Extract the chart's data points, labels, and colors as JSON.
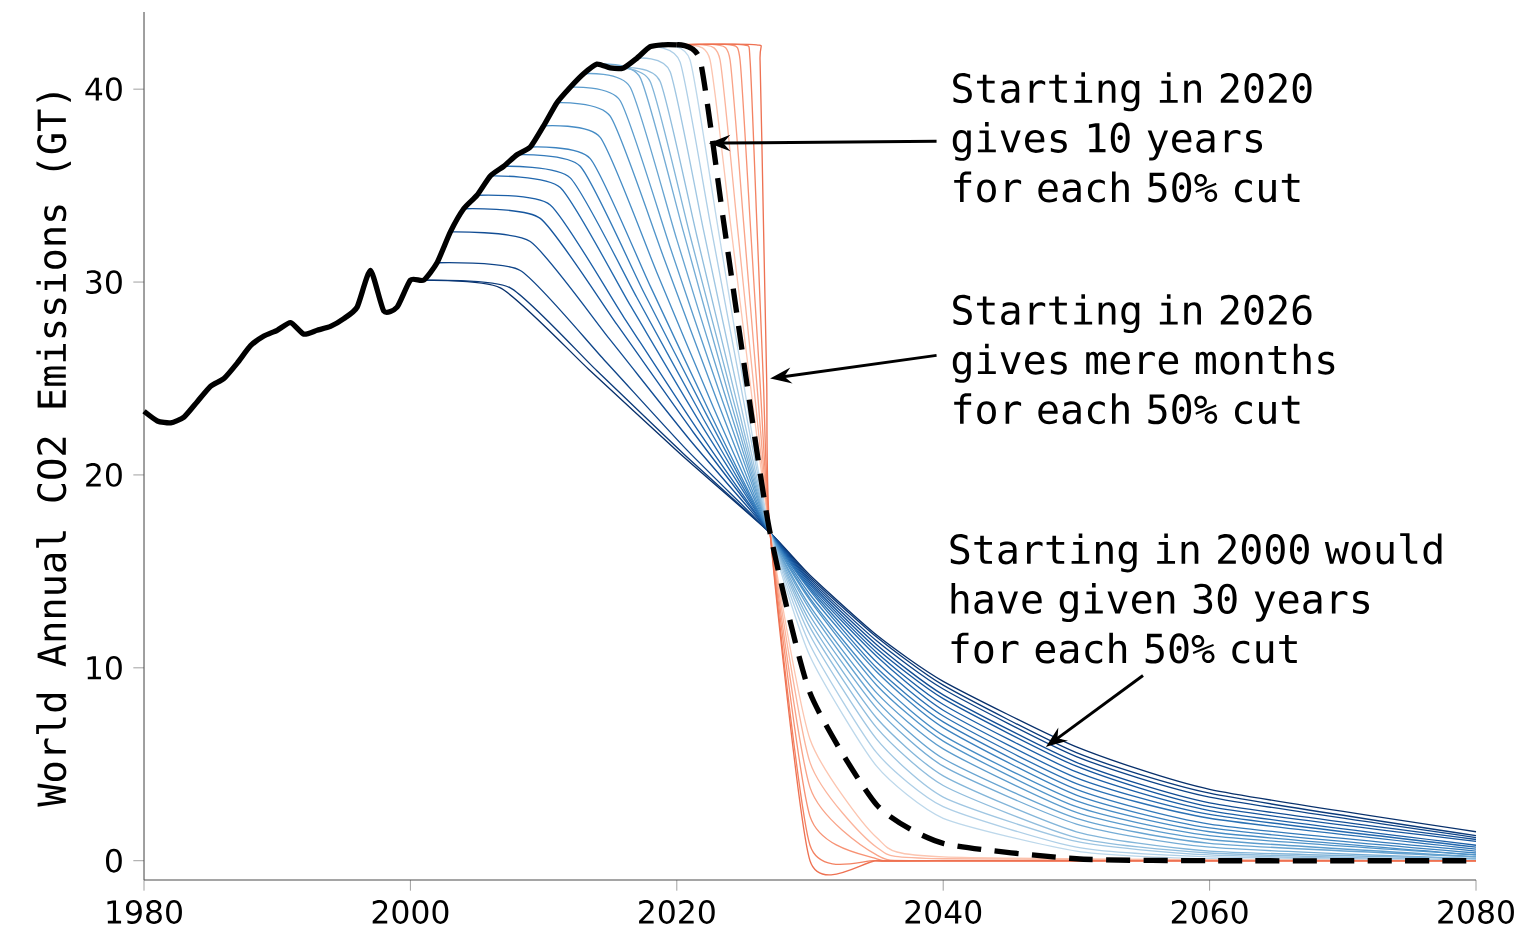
{
  "chart_data": {
    "type": "line",
    "ylabel": "World Annual CO2 Emissions (GT)",
    "xlim": [
      1980,
      2080
    ],
    "ylim": [
      -1,
      44
    ],
    "xticks": [
      1980,
      2000,
      2020,
      2040,
      2060,
      2080
    ],
    "yticks": [
      0,
      10,
      20,
      30,
      40
    ],
    "grid": false,
    "annotations": [
      {
        "text": "Starting in 2020 gives 10 years for each 50% cut",
        "x": 2022.4,
        "y": 37.2
      },
      {
        "text": "Starting in 2026 gives mere months for each 50% cut",
        "x": 2027.0,
        "y": 25.0
      },
      {
        "text": "Starting in 2000 would have given 30 years for each 50% cut",
        "x": 2047.7,
        "y": 5.9
      }
    ],
    "series": [
      {
        "color": "#08306b",
        "x": [
          2000,
          2006.75,
          2013.5,
          2020.25,
          2027,
          2030,
          2035,
          2040,
          2050,
          2060,
          2080
        ],
        "values": [
          30.1,
          29.7,
          25.4,
          21.1,
          17,
          14.8,
          11.7,
          9.3,
          5.9,
          3.7,
          1.5
        ]
      },
      {
        "color": "#0b3a7a",
        "x": [
          2001,
          2007.5,
          2014,
          2020.5,
          2027,
          2030,
          2035,
          2040,
          2050,
          2060,
          2080
        ],
        "values": [
          30.1,
          29.7,
          25.4,
          21.1,
          17,
          14.7,
          11.6,
          9.1,
          5.6,
          3.5,
          1.3
        ]
      },
      {
        "color": "#0e4488",
        "x": [
          2002,
          2008.25,
          2014.5,
          2020.75,
          2027,
          2030,
          2035,
          2040,
          2050,
          2060,
          2080
        ],
        "values": [
          31.0,
          30.6,
          26.0,
          21.3,
          17,
          14.6,
          11.4,
          8.9,
          5.4,
          3.3,
          1.2
        ]
      },
      {
        "color": "#124d94",
        "x": [
          2003,
          2009,
          2015,
          2021,
          2027,
          2030,
          2035,
          2040,
          2050,
          2060,
          2080
        ],
        "values": [
          32.6,
          32.1,
          27.0,
          21.8,
          17,
          14.5,
          11.2,
          8.6,
          5.1,
          3.0,
          1.1
        ]
      },
      {
        "color": "#16569e",
        "x": [
          2004,
          2009.75,
          2015.5,
          2021.25,
          2027,
          2030,
          2035,
          2040,
          2050,
          2060,
          2080
        ],
        "values": [
          33.8,
          33.3,
          27.8,
          22.2,
          17,
          14.4,
          11.0,
          8.4,
          4.9,
          2.8,
          1.0
        ]
      },
      {
        "color": "#1b5fa7",
        "x": [
          2005,
          2010.5,
          2016,
          2021.5,
          2027,
          2030,
          2035,
          2040,
          2050,
          2060,
          2080
        ],
        "values": [
          34.5,
          34.0,
          28.2,
          22.4,
          17,
          14.3,
          10.8,
          8.1,
          4.6,
          2.6,
          0.8
        ]
      },
      {
        "color": "#2268ae",
        "x": [
          2006,
          2011.25,
          2016.5,
          2021.75,
          2027,
          2030,
          2035,
          2040,
          2050,
          2060,
          2080
        ],
        "values": [
          35.5,
          34.9,
          28.8,
          22.7,
          17,
          14.2,
          10.6,
          7.8,
          4.3,
          2.4,
          0.7
        ]
      },
      {
        "color": "#2a71b4",
        "x": [
          2007,
          2012,
          2017,
          2022,
          2027,
          2030,
          2035,
          2040,
          2050,
          2060,
          2080
        ],
        "values": [
          36.0,
          35.4,
          29.2,
          22.9,
          17,
          14.1,
          10.3,
          7.5,
          4.0,
          2.2,
          0.6
        ]
      },
      {
        "color": "#337aba",
        "x": [
          2008,
          2012.75,
          2017.5,
          2022.25,
          2027,
          2030,
          2035,
          2040,
          2050,
          2060,
          2080
        ],
        "values": [
          36.6,
          36.0,
          29.5,
          23.1,
          17,
          14.0,
          10.0,
          7.2,
          3.7,
          1.9,
          0.5
        ]
      },
      {
        "color": "#3c83c0",
        "x": [
          2009,
          2013.5,
          2018,
          2022.5,
          2027,
          2030,
          2035,
          2040,
          2050,
          2060,
          2080
        ],
        "values": [
          37.0,
          36.4,
          29.8,
          23.2,
          17,
          13.8,
          9.8,
          6.9,
          3.4,
          1.7,
          0.4
        ]
      },
      {
        "color": "#468cc5",
        "x": [
          2010,
          2014.25,
          2018.5,
          2022.75,
          2027,
          2030,
          2035,
          2040,
          2050,
          2060,
          2080
        ],
        "values": [
          38.1,
          37.5,
          30.5,
          23.5,
          17,
          13.6,
          9.4,
          6.5,
          3.1,
          1.5,
          0.3
        ]
      },
      {
        "color": "#5094c9",
        "x": [
          2011,
          2015,
          2019,
          2023,
          2027,
          2030,
          2035,
          2040,
          2050,
          2060,
          2080
        ],
        "values": [
          39.3,
          38.6,
          31.3,
          23.9,
          17,
          13.5,
          9.1,
          6.2,
          2.8,
          1.3,
          0.3
        ]
      },
      {
        "color": "#5b9ccd",
        "x": [
          2012,
          2015.75,
          2019.5,
          2023.25,
          2027,
          2030,
          2035,
          2040,
          2050,
          2060,
          2080
        ],
        "values": [
          40.1,
          39.4,
          31.8,
          24.2,
          17,
          13.2,
          8.7,
          5.8,
          2.5,
          1.1,
          0.2
        ]
      },
      {
        "color": "#67a4d1",
        "x": [
          2013,
          2016.5,
          2020,
          2023.5,
          2027,
          2030,
          2035,
          2040,
          2050,
          2060,
          2080
        ],
        "values": [
          40.8,
          40.1,
          32.2,
          24.4,
          17,
          13.0,
          8.3,
          5.3,
          2.2,
          0.9,
          0.2
        ]
      },
      {
        "color": "#74acd5",
        "x": [
          2014,
          2017.25,
          2020.5,
          2023.75,
          2027,
          2030,
          2035,
          2040,
          2050,
          2060,
          2080
        ],
        "values": [
          41.3,
          40.6,
          32.6,
          24.5,
          17,
          12.7,
          7.9,
          4.9,
          1.9,
          0.7,
          0.1
        ]
      },
      {
        "color": "#82b5d9",
        "x": [
          2015,
          2018,
          2021,
          2024,
          2027,
          2030,
          2035,
          2040,
          2050,
          2060,
          2080
        ],
        "values": [
          41.1,
          40.4,
          32.4,
          24.5,
          17,
          12.4,
          7.4,
          4.4,
          1.5,
          0.5,
          0.1
        ]
      },
      {
        "color": "#90bddd",
        "x": [
          2016,
          2018.75,
          2021.5,
          2024.25,
          2027,
          2030,
          2035,
          2040,
          2050,
          2060,
          2080
        ],
        "values": [
          41.1,
          40.4,
          32.4,
          24.5,
          17,
          12.1,
          6.9,
          3.9,
          1.2,
          0.4,
          0.0
        ]
      },
      {
        "color": "#9fc6e2",
        "x": [
          2017,
          2019.5,
          2022,
          2024.5,
          2027,
          2030,
          2035,
          2040,
          2050,
          2060,
          2080
        ],
        "values": [
          41.6,
          40.9,
          32.7,
          24.6,
          17,
          11.7,
          6.3,
          3.3,
          1.0,
          0.3,
          0.0
        ]
      },
      {
        "color": "#aecfe7",
        "x": [
          2018,
          2020.25,
          2022.5,
          2024.75,
          2027,
          2030,
          2035,
          2040,
          2050,
          2060,
          2080
        ],
        "values": [
          42.2,
          41.4,
          33.1,
          24.8,
          17,
          11.2,
          5.6,
          2.8,
          0.7,
          0.2,
          0.0
        ]
      },
      {
        "color": "#bdd8eb",
        "x": [
          2019,
          2021,
          2023,
          2025,
          2027,
          2030,
          2035,
          2040,
          2050,
          2060,
          2080
        ],
        "values": [
          42.3,
          41.5,
          33.2,
          24.8,
          17,
          10.6,
          4.9,
          2.2,
          0.5,
          0.1,
          0.0
        ]
      },
      {
        "color": "#fcc5b0",
        "x": [
          2020,
          2021,
          2022.5,
          2024,
          2025.5,
          2027,
          2030,
          2035,
          2040,
          2080
        ],
        "values": [
          42.3,
          42.3,
          41.5,
          33.2,
          24.8,
          17,
          6.3,
          1.2,
          0.2,
          0.0
        ]
      },
      {
        "color": "#fbb49c",
        "x": [
          2020,
          2022,
          2023.25,
          2024.5,
          2025.75,
          2027,
          2030,
          2035,
          2040,
          2080
        ],
        "values": [
          42.3,
          42.3,
          41.5,
          33.2,
          24.8,
          17,
          5.1,
          0.7,
          0.1,
          0.0
        ]
      },
      {
        "color": "#f9a388",
        "x": [
          2020,
          2023,
          2024,
          2025,
          2026,
          2027,
          2030,
          2035,
          2040,
          2080
        ],
        "values": [
          42.3,
          42.3,
          41.5,
          33.2,
          24.8,
          17,
          3.8,
          0.3,
          0.0,
          0.0
        ]
      },
      {
        "color": "#f79274",
        "x": [
          2020,
          2024,
          2024.75,
          2025.5,
          2026.25,
          2027,
          2030,
          2035,
          2040,
          2080
        ],
        "values": [
          42.3,
          42.3,
          41.5,
          33.2,
          24.8,
          17,
          2.3,
          0.1,
          0.0,
          0.0
        ]
      },
      {
        "color": "#f38262",
        "x": [
          2020,
          2025,
          2025.5,
          2026,
          2026.5,
          2027,
          2030,
          2035,
          2040,
          2080
        ],
        "values": [
          42.3,
          42.3,
          41.5,
          33.2,
          24.8,
          17,
          0.8,
          0.0,
          0.0,
          0.0
        ]
      },
      {
        "color": "#ee7152",
        "x": [
          2020,
          2026,
          2026.25,
          2026.5,
          2026.75,
          2027,
          2030,
          2035,
          2040,
          2080
        ],
        "values": [
          42.3,
          42.3,
          41.5,
          33.2,
          24.8,
          17,
          0.0,
          0.0,
          0.0,
          0.0
        ]
      },
      {
        "color": "#000000",
        "line_style": "dashed",
        "x": [
          2020,
          2021.75,
          2023.5,
          2025.25,
          2027,
          2030,
          2035,
          2040,
          2050,
          2060,
          2080
        ],
        "values": [
          42.3,
          41.5,
          33.2,
          24.8,
          17,
          8.7,
          2.9,
          0.9,
          0.1,
          0.0,
          0.0
        ]
      },
      {
        "color": "#000000",
        "x": [
          1980,
          1981,
          1982,
          1983,
          1984,
          1985,
          1986,
          1987,
          1988,
          1989,
          1990,
          1991,
          1992,
          1993,
          1994,
          1995,
          1996,
          1997,
          1998,
          1999,
          2000,
          2001,
          2002,
          2003,
          2004,
          2005,
          2006,
          2007,
          2008,
          2009,
          2010,
          2011,
          2012,
          2013,
          2014,
          2015,
          2016,
          2017,
          2018,
          2019,
          2020
        ],
        "values": [
          23.3,
          22.8,
          22.7,
          23.0,
          23.8,
          24.6,
          25.0,
          25.8,
          26.7,
          27.2,
          27.5,
          27.9,
          27.3,
          27.5,
          27.7,
          28.1,
          28.7,
          30.6,
          28.5,
          28.7,
          30.1,
          30.1,
          31.0,
          32.6,
          33.8,
          34.5,
          35.5,
          36.0,
          36.6,
          37.0,
          38.1,
          39.3,
          40.1,
          40.8,
          41.3,
          41.1,
          41.1,
          41.6,
          42.2,
          42.3,
          42.3
        ]
      }
    ]
  }
}
